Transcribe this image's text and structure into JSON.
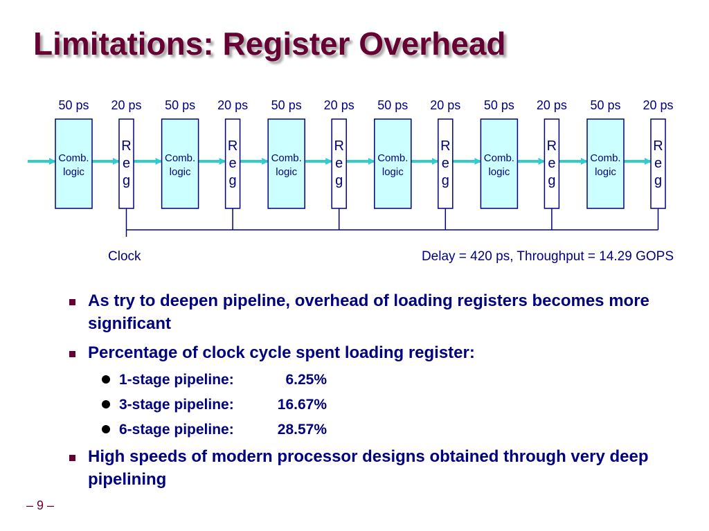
{
  "title": "Limitations: Register Overhead",
  "diagram": {
    "timing_labels": [
      "50 ps",
      "20 ps",
      "50 ps",
      "20 ps",
      "50 ps",
      "20 ps",
      "50 ps",
      "20 ps",
      "50 ps",
      "20 ps",
      "50 ps",
      "20 ps"
    ],
    "comb_line1": "Comb.",
    "comb_line2": "logic",
    "reg_letters": [
      "R",
      "e",
      "g"
    ],
    "clock_label": "Clock",
    "summary": "Delay = 420 ps, Throughput = 14.29 GOPS",
    "stage_count": 6,
    "colors": {
      "comb_fill": "#ccffff",
      "arrow": "#33cccc",
      "text": "#00007f",
      "line": "#00007f"
    }
  },
  "bullets": [
    {
      "text": "As try to deepen pipeline, overhead of loading registers becomes more significant"
    },
    {
      "text": "Percentage of clock cycle spent loading register:",
      "sub": [
        {
          "name": "1-stage pipeline:",
          "value": "6.25%"
        },
        {
          "name": "3-stage pipeline:",
          "value": "16.67%"
        },
        {
          "name": "6-stage pipeline:",
          "value": "28.57%"
        }
      ]
    },
    {
      "text": "High speeds of modern processor designs obtained through very deep pipelining"
    }
  ],
  "page_number": "– 9 –"
}
